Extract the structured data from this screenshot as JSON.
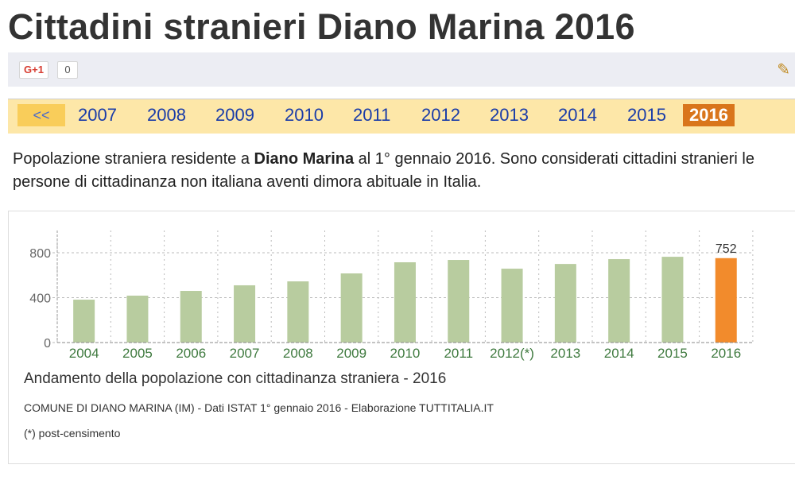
{
  "page_title": "Cittadini stranieri Diano Marina 2016",
  "social": {
    "gplus_label": "G+1",
    "gplus_count": "0",
    "edit_icon": "pencil-icon"
  },
  "year_nav": {
    "prev_label": "<<",
    "years": [
      "2007",
      "2008",
      "2009",
      "2010",
      "2011",
      "2012",
      "2013",
      "2014",
      "2015"
    ],
    "current": "2016"
  },
  "description": {
    "part1": "Popolazione straniera residente a ",
    "bold": "Diano Marina",
    "part2": " al 1° gennaio 2016. Sono considerati cittadini stranieri le persone di cittadinanza non italiana aventi dimora abituale in Italia."
  },
  "chart_data": {
    "type": "bar",
    "title": "Andamento della popolazione con cittadinanza straniera - 2016",
    "source": "COMUNE DI DIANO MARINA (IM) - Dati ISTAT 1° gennaio 2016 - Elaborazione TUTTITALIA.IT",
    "note": "(*) post-censimento",
    "categories": [
      "2004",
      "2005",
      "2006",
      "2007",
      "2008",
      "2009",
      "2010",
      "2011",
      "2012(*)",
      "2013",
      "2014",
      "2015",
      "2016"
    ],
    "values": [
      382,
      418,
      460,
      510,
      545,
      616,
      715,
      736,
      658,
      700,
      743,
      764,
      752
    ],
    "highlight_label": "752",
    "yticks": [
      "0",
      "400",
      "800"
    ],
    "ylim": [
      0,
      1000
    ],
    "grid": true,
    "colors": {
      "bar": "#b8cc9f",
      "highlight": "#f28b2c",
      "tick": "#3f7a3f"
    }
  }
}
